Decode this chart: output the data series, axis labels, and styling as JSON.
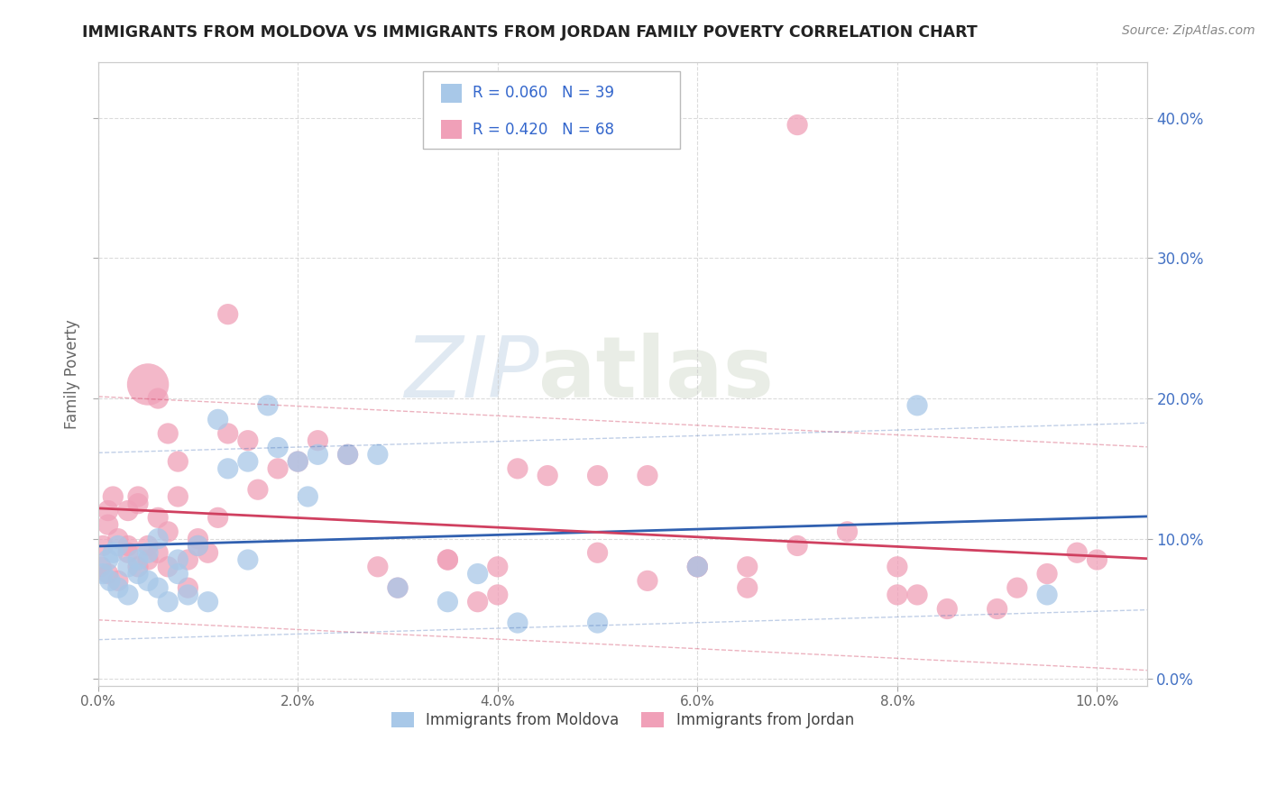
{
  "title": "IMMIGRANTS FROM MOLDOVA VS IMMIGRANTS FROM JORDAN FAMILY POVERTY CORRELATION CHART",
  "source": "Source: ZipAtlas.com",
  "ylabel": "Family Poverty",
  "xlim": [
    0.0,
    0.105
  ],
  "ylim": [
    -0.005,
    0.44
  ],
  "yticks": [
    0.0,
    0.1,
    0.2,
    0.3,
    0.4
  ],
  "xticks": [
    0.0,
    0.02,
    0.04,
    0.06,
    0.08,
    0.1
  ],
  "moldova_R": "R = 0.060",
  "moldova_N": "N = 39",
  "jordan_R": "R = 0.420",
  "jordan_N": "N = 68",
  "moldova_color": "#A8C8E8",
  "jordan_color": "#F0A0B8",
  "moldova_line_color": "#3060B0",
  "jordan_line_color": "#D04060",
  "legend_moldova_label": "Immigrants from Moldova",
  "legend_jordan_label": "Immigrants from Jordan",
  "moldova_scatter_x": [
    0.0005,
    0.001,
    0.0012,
    0.0015,
    0.002,
    0.002,
    0.003,
    0.003,
    0.004,
    0.004,
    0.005,
    0.005,
    0.006,
    0.006,
    0.007,
    0.008,
    0.008,
    0.009,
    0.01,
    0.011,
    0.012,
    0.013,
    0.015,
    0.015,
    0.017,
    0.018,
    0.02,
    0.021,
    0.022,
    0.025,
    0.028,
    0.03,
    0.035,
    0.038,
    0.042,
    0.05,
    0.06,
    0.082,
    0.095
  ],
  "moldova_scatter_y": [
    0.075,
    0.085,
    0.07,
    0.09,
    0.065,
    0.095,
    0.06,
    0.08,
    0.075,
    0.085,
    0.07,
    0.09,
    0.065,
    0.1,
    0.055,
    0.085,
    0.075,
    0.06,
    0.095,
    0.055,
    0.185,
    0.15,
    0.085,
    0.155,
    0.195,
    0.165,
    0.155,
    0.13,
    0.16,
    0.16,
    0.16,
    0.065,
    0.055,
    0.075,
    0.04,
    0.04,
    0.08,
    0.195,
    0.06
  ],
  "moldova_marker_size": [
    20,
    20,
    20,
    20,
    20,
    20,
    20,
    20,
    20,
    20,
    20,
    20,
    20,
    20,
    20,
    20,
    20,
    20,
    20,
    20,
    20,
    20,
    20,
    20,
    20,
    20,
    20,
    20,
    20,
    20,
    20,
    20,
    20,
    20,
    20,
    20,
    20,
    20,
    20
  ],
  "jordan_scatter_x": [
    0.0003,
    0.0005,
    0.001,
    0.001,
    0.001,
    0.0015,
    0.002,
    0.002,
    0.003,
    0.003,
    0.003,
    0.004,
    0.004,
    0.004,
    0.005,
    0.005,
    0.005,
    0.006,
    0.006,
    0.006,
    0.007,
    0.007,
    0.007,
    0.008,
    0.008,
    0.009,
    0.009,
    0.01,
    0.01,
    0.011,
    0.012,
    0.013,
    0.013,
    0.015,
    0.016,
    0.018,
    0.02,
    0.022,
    0.025,
    0.028,
    0.03,
    0.035,
    0.038,
    0.04,
    0.042,
    0.045,
    0.05,
    0.055,
    0.06,
    0.065,
    0.07,
    0.075,
    0.08,
    0.082,
    0.035,
    0.04,
    0.05,
    0.055,
    0.06,
    0.065,
    0.07,
    0.08,
    0.085,
    0.09,
    0.092,
    0.095,
    0.098,
    0.1
  ],
  "jordan_scatter_y": [
    0.08,
    0.095,
    0.075,
    0.11,
    0.12,
    0.13,
    0.07,
    0.1,
    0.095,
    0.12,
    0.09,
    0.125,
    0.08,
    0.13,
    0.085,
    0.21,
    0.095,
    0.2,
    0.115,
    0.09,
    0.105,
    0.175,
    0.08,
    0.13,
    0.155,
    0.065,
    0.085,
    0.1,
    0.095,
    0.09,
    0.115,
    0.26,
    0.175,
    0.17,
    0.135,
    0.15,
    0.155,
    0.17,
    0.16,
    0.08,
    0.065,
    0.085,
    0.055,
    0.08,
    0.15,
    0.145,
    0.145,
    0.145,
    0.08,
    0.065,
    0.095,
    0.105,
    0.08,
    0.06,
    0.085,
    0.06,
    0.09,
    0.07,
    0.08,
    0.08,
    0.395,
    0.06,
    0.05,
    0.05,
    0.065,
    0.075,
    0.09,
    0.085
  ],
  "jordan_marker_size": [
    20,
    20,
    20,
    20,
    20,
    20,
    20,
    20,
    20,
    20,
    20,
    20,
    20,
    20,
    20,
    80,
    20,
    20,
    20,
    20,
    20,
    20,
    20,
    20,
    20,
    20,
    20,
    20,
    20,
    20,
    20,
    20,
    20,
    20,
    20,
    20,
    20,
    20,
    20,
    20,
    20,
    20,
    20,
    20,
    20,
    20,
    20,
    20,
    20,
    20,
    20,
    20,
    20,
    20,
    20,
    20,
    20,
    20,
    20,
    20,
    20,
    20,
    20,
    20,
    20,
    20,
    20,
    20
  ],
  "watermark_zip": "ZIP",
  "watermark_atlas": "atlas",
  "background_color": "#FFFFFF",
  "grid_color": "#CCCCCC",
  "right_tick_color": "#4472C4",
  "title_color": "#222222",
  "source_color": "#888888",
  "ylabel_color": "#666666",
  "legend_box_color": "#DDDDDD",
  "legend_text_color": "#222222",
  "legend_val_color": "#3366CC"
}
